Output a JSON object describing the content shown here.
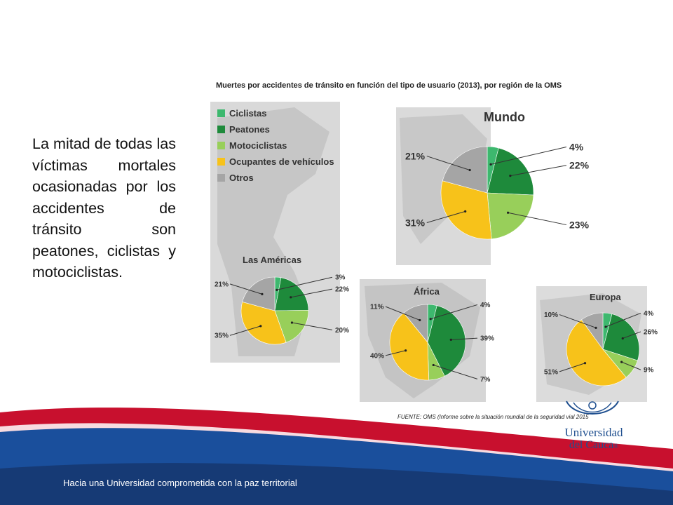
{
  "slide": {
    "body_text": "La mitad de todas las víctimas mortales ocasionadas por los accidentes de tránsito son peatones, ciclistas y motociclistas.",
    "source": "FUENTE: OMS (Informe sobre la situación mundial de la seguridad vial 2015",
    "slogan": "Hacia una Universidad comprometida con la paz territorial",
    "university_line1": "Universidad",
    "university_line2": "del Cauca",
    "registered_mark": "®",
    "colors": {
      "banner_red": "#c8102e",
      "banner_blue": "#1a4f9c",
      "banner_navy": "#163a75",
      "university_blue": "#1f4f8f"
    }
  },
  "chart_data": {
    "type": "pie",
    "title": "Muertes por accidentes de tránsito en función del tipo de usuario (2013), por región de la OMS",
    "legend": [
      {
        "label": "Ciclistas",
        "color": "#3db86e"
      },
      {
        "label": "Peatones",
        "color": "#1e8a3b"
      },
      {
        "label": "Motociclistas",
        "color": "#98cf5a"
      },
      {
        "label": "Ocupantes de vehículos",
        "color": "#f7c21a"
      },
      {
        "label": "Otros",
        "color": "#a5a5a5"
      }
    ],
    "legend_position": "top-left",
    "charts": [
      {
        "region": "Mundo",
        "categories": [
          "Ciclistas",
          "Peatones",
          "Motociclistas",
          "Ocupantes de vehículos",
          "Otros"
        ],
        "values": [
          4,
          22,
          23,
          31,
          21
        ],
        "labels": [
          "4%",
          "22%",
          "23%",
          "31%",
          "21%"
        ]
      },
      {
        "region": "Las Américas",
        "categories": [
          "Ciclistas",
          "Peatones",
          "Motociclistas",
          "Ocupantes de vehículos",
          "Otros"
        ],
        "values": [
          3,
          22,
          20,
          35,
          21
        ],
        "labels": [
          "3%",
          "22%",
          "20%",
          "35%",
          "21%"
        ]
      },
      {
        "region": "África",
        "categories": [
          "Ciclistas",
          "Peatones",
          "Motociclistas",
          "Ocupantes de vehículos",
          "Otros"
        ],
        "values": [
          4,
          39,
          7,
          40,
          11
        ],
        "labels": [
          "4%",
          "39%",
          "7%",
          "40%",
          "11%"
        ]
      },
      {
        "region": "Europa",
        "categories": [
          "Ciclistas",
          "Peatones",
          "Motociclistas",
          "Ocupantes de vehículos",
          "Otros"
        ],
        "values": [
          4,
          26,
          9,
          51,
          10
        ],
        "labels": [
          "4%",
          "26%",
          "9%",
          "51%",
          "10%"
        ]
      }
    ]
  }
}
